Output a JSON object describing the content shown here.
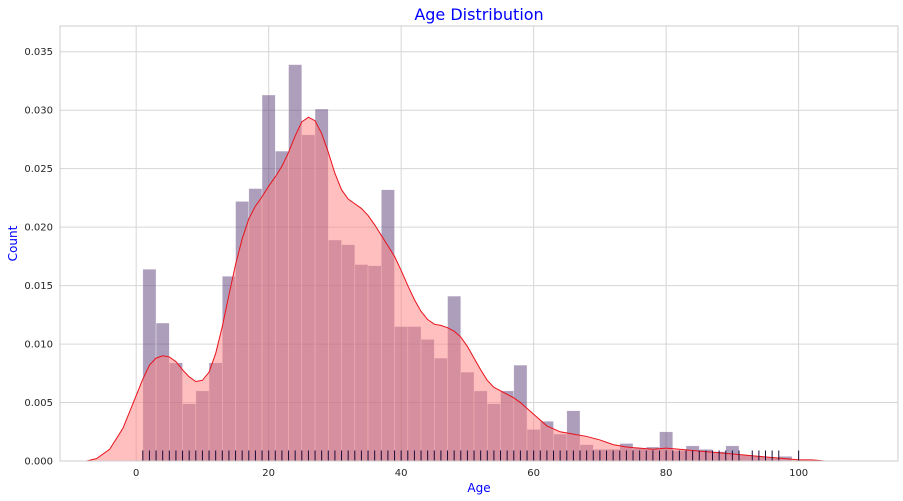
{
  "chart_data": {
    "type": "bar",
    "title": "Age Distribution",
    "xlabel": "Age",
    "ylabel": "Count",
    "xlim": [
      -11.5,
      115
    ],
    "ylim": [
      0,
      0.0372
    ],
    "xticks": [
      0,
      20,
      40,
      60,
      80,
      100
    ],
    "yticks": [
      0.0,
      0.005,
      0.01,
      0.015,
      0.02,
      0.025,
      0.03,
      0.035
    ],
    "ytick_labels": [
      "0.000",
      "0.005",
      "0.010",
      "0.015",
      "0.020",
      "0.025",
      "0.030",
      "0.035"
    ],
    "grid": true,
    "colors": {
      "hist": "#5c3d7a",
      "kde_line": "#e8121c",
      "kde_fill": "#ff7f7f",
      "rug": "#1a0a3a",
      "text": "#0000ff"
    },
    "histogram": {
      "bin_start": 1,
      "bin_width": 2,
      "densities": [
        0.0164,
        0.0118,
        0.0084,
        0.0049,
        0.006,
        0.0084,
        0.0158,
        0.0222,
        0.0233,
        0.0313,
        0.0265,
        0.0339,
        0.0279,
        0.0301,
        0.0189,
        0.0185,
        0.0168,
        0.0167,
        0.0232,
        0.0115,
        0.0115,
        0.0104,
        0.0088,
        0.0141,
        0.0076,
        0.006,
        0.0049,
        0.006,
        0.0082,
        0.0027,
        0.0034,
        0.0023,
        0.0043,
        0.0014,
        0.001,
        0.001,
        0.0015,
        0.0011,
        0.0012,
        0.0025,
        0.0009,
        0.0013,
        0.001,
        0.0008,
        0.0013,
        0.0005,
        0.0004,
        0.0003,
        0.0004
      ]
    },
    "kde": {
      "x": [
        -7.5,
        -6,
        -4,
        -2,
        0,
        1,
        2,
        3,
        4,
        5,
        6,
        7,
        8,
        9,
        10,
        11,
        12,
        13,
        14,
        15,
        16,
        17,
        18,
        19,
        20,
        21,
        22,
        23,
        24,
        25,
        26,
        27,
        28,
        29,
        30,
        31,
        32,
        33,
        34,
        35,
        36,
        37,
        38,
        39,
        40,
        41,
        42,
        43,
        44,
        45,
        46,
        47,
        48,
        49,
        50,
        51,
        52,
        53,
        54,
        55,
        56,
        57,
        58,
        59,
        60,
        62,
        64,
        66,
        68,
        70,
        72,
        74,
        76,
        78,
        80,
        82,
        84,
        86,
        88,
        90,
        92,
        94,
        96,
        98,
        100,
        102,
        104,
        106,
        108
      ],
      "y": [
        0.0,
        0.0002,
        0.001,
        0.0028,
        0.0056,
        0.007,
        0.0082,
        0.0088,
        0.009,
        0.0089,
        0.0085,
        0.0078,
        0.0072,
        0.0068,
        0.0069,
        0.0076,
        0.0092,
        0.0115,
        0.0142,
        0.0168,
        0.019,
        0.0207,
        0.0218,
        0.0226,
        0.0235,
        0.0243,
        0.0252,
        0.0264,
        0.0278,
        0.029,
        0.0294,
        0.0291,
        0.028,
        0.0264,
        0.0246,
        0.0232,
        0.0224,
        0.022,
        0.0216,
        0.021,
        0.0202,
        0.0193,
        0.0184,
        0.0175,
        0.0163,
        0.015,
        0.0138,
        0.0128,
        0.0121,
        0.0117,
        0.0116,
        0.0114,
        0.0111,
        0.0106,
        0.0098,
        0.0088,
        0.0078,
        0.0069,
        0.0063,
        0.006,
        0.0057,
        0.0054,
        0.005,
        0.0045,
        0.004,
        0.003,
        0.0025,
        0.0023,
        0.0021,
        0.0018,
        0.0014,
        0.0012,
        0.0011,
        0.001,
        0.0011,
        0.001,
        0.0009,
        0.0008,
        0.0007,
        0.0006,
        0.0005,
        0.0004,
        0.0003,
        0.0002,
        0.0001,
        0.0001,
        0.0,
        0.0,
        0.0
      ]
    },
    "rug": {
      "ages": [
        1,
        2,
        3,
        4,
        5,
        6,
        7,
        8,
        9,
        10,
        11,
        12,
        13,
        14,
        15,
        16,
        17,
        18,
        19,
        20,
        21,
        22,
        23,
        24,
        25,
        26,
        27,
        28,
        29,
        30,
        31,
        32,
        33,
        34,
        35,
        36,
        37,
        38,
        39,
        40,
        41,
        42,
        43,
        44,
        45,
        46,
        47,
        48,
        49,
        50,
        51,
        52,
        53,
        54,
        55,
        56,
        57,
        58,
        59,
        60,
        61,
        62,
        63,
        64,
        65,
        66,
        67,
        68,
        69,
        70,
        71,
        72,
        73,
        74,
        75,
        76,
        77,
        78,
        79,
        80,
        81,
        82,
        83,
        84,
        85,
        86,
        87,
        88,
        89,
        90,
        91,
        93,
        94,
        95,
        96,
        97,
        100
      ],
      "height_density": 0.0009
    }
  }
}
